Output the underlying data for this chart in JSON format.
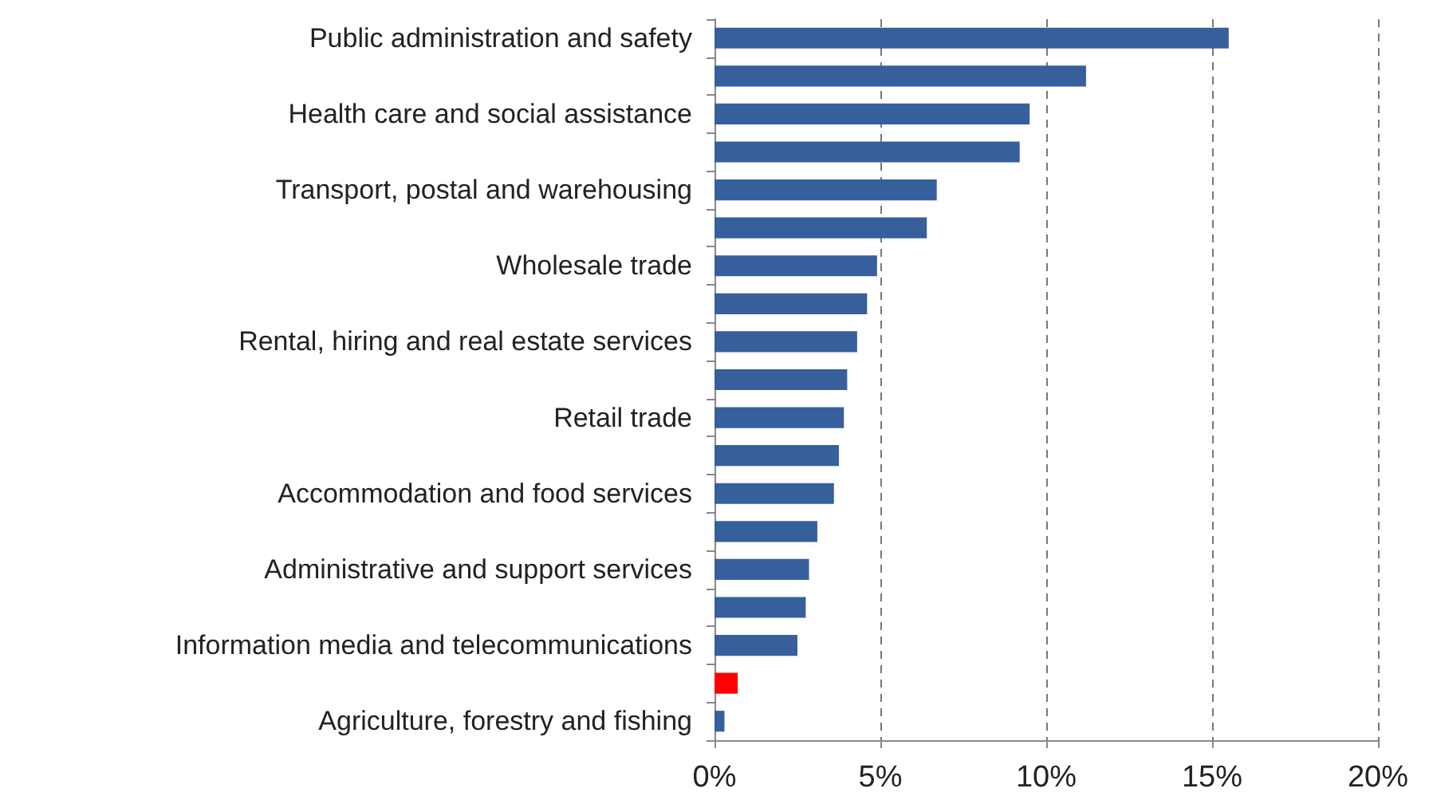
{
  "chart_data": {
    "type": "bar",
    "orientation": "horizontal",
    "categories": [
      "Public administration and safety",
      null,
      "Health care and social assistance",
      null,
      "Transport, postal and warehousing",
      null,
      "Wholesale trade",
      null,
      "Rental, hiring and real estate services",
      null,
      "Retail trade",
      null,
      "Accommodation and food services",
      null,
      "Administrative and support services",
      null,
      "Information media and telecommunications",
      null,
      "Agriculture, forestry and fishing"
    ],
    "values": [
      15.5,
      11.2,
      9.5,
      9.2,
      6.7,
      6.4,
      4.9,
      4.6,
      4.3,
      4.0,
      3.9,
      3.75,
      3.6,
      3.1,
      2.85,
      2.75,
      2.5,
      0.7,
      0.3
    ],
    "colors": [
      "#365f9c",
      "#365f9c",
      "#365f9c",
      "#365f9c",
      "#365f9c",
      "#365f9c",
      "#365f9c",
      "#365f9c",
      "#365f9c",
      "#365f9c",
      "#365f9c",
      "#365f9c",
      "#365f9c",
      "#365f9c",
      "#365f9c",
      "#365f9c",
      "#365f9c",
      "#ff0000",
      "#365f9c"
    ],
    "xlim": [
      0,
      20
    ],
    "xticks": [
      {
        "value": 0,
        "label": "0%"
      },
      {
        "value": 5,
        "label": "5%"
      },
      {
        "value": 10,
        "label": "10%"
      },
      {
        "value": 15,
        "label": "15%"
      },
      {
        "value": 20,
        "label": "20%"
      }
    ],
    "grid": "x"
  }
}
